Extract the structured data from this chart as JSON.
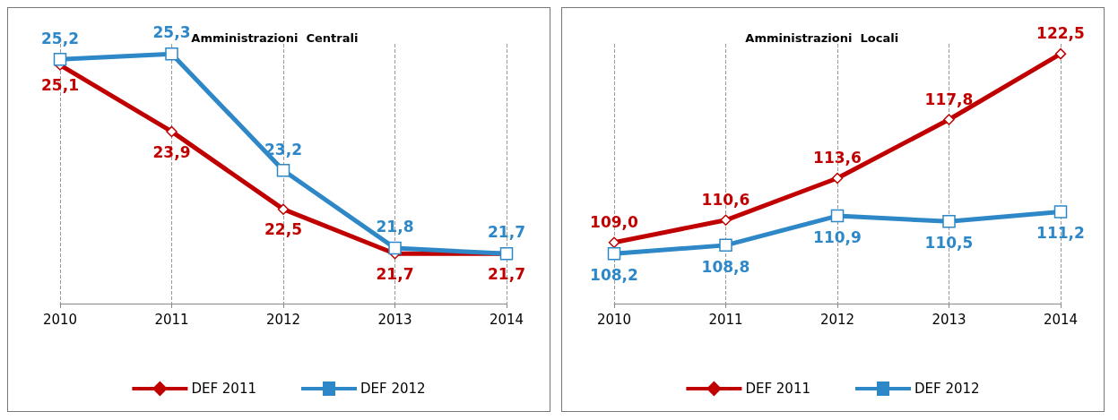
{
  "chart_data": [
    {
      "type": "line",
      "title": "Amministrazioni  Centrali",
      "categories": [
        "2010",
        "2011",
        "2012",
        "2013",
        "2014"
      ],
      "series": [
        {
          "name": "DEF 2011",
          "color": "#c00000",
          "marker": "diamond",
          "values": [
            25.1,
            23.9,
            22.5,
            21.7,
            21.7
          ],
          "value_labels": [
            "25,1",
            "23,9",
            "22,5",
            "21,7",
            "21,7"
          ]
        },
        {
          "name": "DEF 2012",
          "color": "#2e88c8",
          "marker": "square",
          "values": [
            25.2,
            25.3,
            23.2,
            21.8,
            21.7
          ],
          "value_labels": [
            "25,2",
            "25,3",
            "23,2",
            "21,8",
            "21,7"
          ]
        }
      ],
      "grid": "x",
      "legend": "bottom",
      "tick_labels": "x"
    },
    {
      "type": "line",
      "title": "Amministrazioni  Locali",
      "categories": [
        "2010",
        "2011",
        "2012",
        "2013",
        "2014"
      ],
      "series": [
        {
          "name": "DEF 2011",
          "color": "#c00000",
          "marker": "diamond",
          "values": [
            109.0,
            110.6,
            113.6,
            117.8,
            122.5
          ],
          "value_labels": [
            "109,0",
            "110,6",
            "113,6",
            "117,8",
            "122,5"
          ]
        },
        {
          "name": "DEF 2012",
          "color": "#2e88c8",
          "marker": "square",
          "values": [
            108.2,
            108.8,
            110.9,
            110.5,
            111.2
          ],
          "value_labels": [
            "108,2",
            "108,8",
            "110,9",
            "110,5",
            "111,2"
          ]
        }
      ],
      "grid": "x",
      "legend": "bottom",
      "tick_labels": "x"
    }
  ]
}
